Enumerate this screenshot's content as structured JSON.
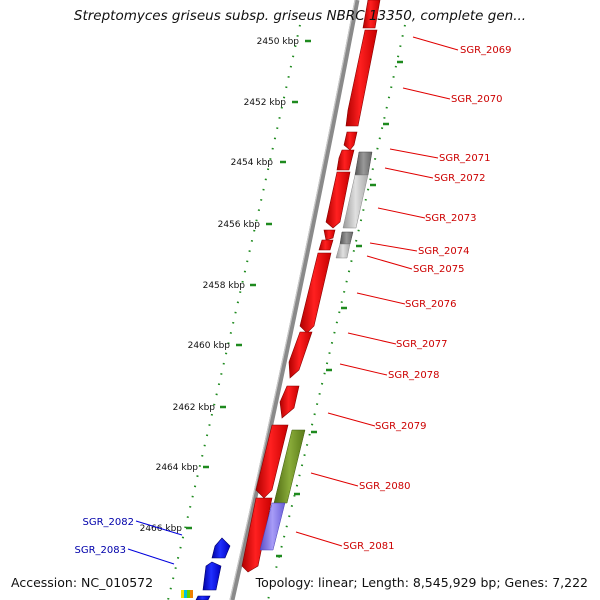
{
  "title": "Streptomyces griseus subsp. griseus NBRC 13350, complete gen...",
  "accession": "Accession: NC_010572",
  "summary": "Topology: linear; Length: 8,545,929 bp; Genes: 7,222",
  "colors": {
    "forward_gene": "#ee0000",
    "reverse_gene": "#0000dd",
    "gene_label_forward": "#cc0000",
    "gene_label_reverse": "#0000aa",
    "backbone": "#888888",
    "tick": "#228822",
    "feature_gray": "#aaaaaa",
    "feature_olive": "#6b8e23",
    "feature_purple": "#7b68ee"
  },
  "scale_labels": [
    "2450 kbp",
    "2452 kbp",
    "2454 kbp",
    "2456 kbp",
    "2458 kbp",
    "2460 kbp",
    "2462 kbp",
    "2464 kbp",
    "2466 kbp"
  ],
  "gene_labels_forward": [
    "SGR_2069",
    "SGR_2070",
    "SGR_2071",
    "SGR_2072",
    "SGR_2073",
    "SGR_2074",
    "SGR_2075",
    "SGR_2076",
    "SGR_2077",
    "SGR_2078",
    "SGR_2079",
    "SGR_2080",
    "SGR_2081"
  ],
  "gene_labels_reverse": [
    "SGR_2082",
    "SGR_2083"
  ]
}
